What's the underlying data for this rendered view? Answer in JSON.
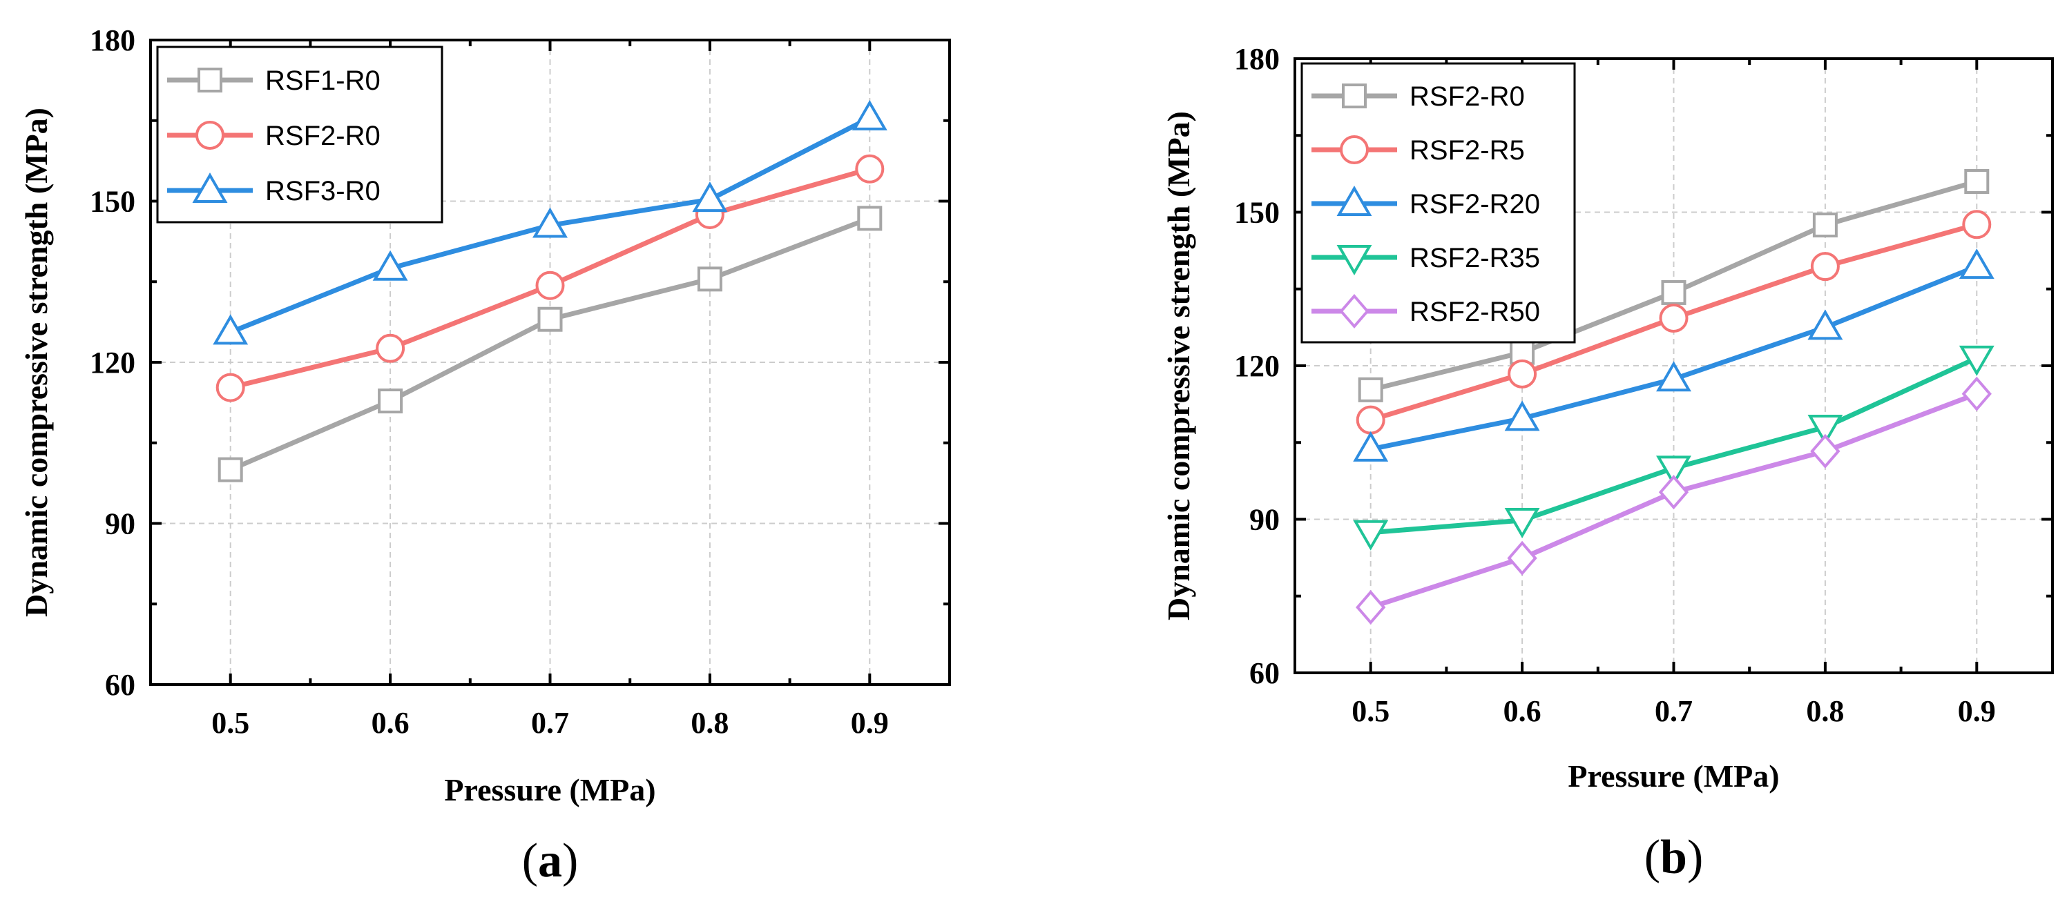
{
  "chart_data": [
    {
      "type": "line",
      "panel_label": {
        "open": "(",
        "letter": "a",
        "close": ")"
      },
      "xlabel": "Pressure (MPa)",
      "ylabel": "Dynamic compressive strength (MPa)",
      "x": [
        0.5,
        0.6,
        0.7,
        0.8,
        0.9
      ],
      "x_tick_labels": [
        "0.5",
        "0.6",
        "0.7",
        "0.8",
        "0.9"
      ],
      "y_ticks": [
        60,
        90,
        120,
        150,
        180
      ],
      "xlim": [
        0.45,
        0.95
      ],
      "ylim": [
        60,
        180
      ],
      "grid": true,
      "legend_position": "top-left",
      "series": [
        {
          "name": "RSF1-R0",
          "color": "#a6a6a6",
          "marker": "square",
          "values": [
            100,
            112.8,
            128,
            135.5,
            146.8
          ]
        },
        {
          "name": "RSF2-R0",
          "color": "#f47575",
          "marker": "circle",
          "values": [
            115.3,
            122.6,
            134.3,
            147.5,
            156
          ]
        },
        {
          "name": "RSF3-R0",
          "color": "#2e8de0",
          "marker": "triangle-up",
          "values": [
            125.6,
            137.5,
            145.5,
            150.3,
            165.5
          ]
        }
      ]
    },
    {
      "type": "line",
      "panel_label": {
        "open": "(",
        "letter": "b",
        "close": ")"
      },
      "xlabel": "Pressure (MPa)",
      "ylabel": "Dynamic compressive strength (MPa)",
      "x": [
        0.5,
        0.6,
        0.7,
        0.8,
        0.9
      ],
      "x_tick_labels": [
        "0.5",
        "0.6",
        "0.7",
        "0.8",
        "0.9"
      ],
      "y_ticks": [
        60,
        90,
        120,
        150,
        180
      ],
      "xlim": [
        0.45,
        0.95
      ],
      "ylim": [
        60,
        180
      ],
      "grid": true,
      "legend_position": "top-left",
      "series": [
        {
          "name": "RSF2-R0",
          "color": "#a6a6a6",
          "marker": "square",
          "values": [
            115.3,
            122.6,
            134.3,
            147.5,
            156
          ]
        },
        {
          "name": "RSF2-R5",
          "color": "#f47575",
          "marker": "circle",
          "values": [
            109.4,
            118.4,
            129.3,
            139.4,
            147.6
          ]
        },
        {
          "name": "RSF2-R20",
          "color": "#2e8de0",
          "marker": "triangle-up",
          "values": [
            103.7,
            109.7,
            117.4,
            127.5,
            139.4
          ]
        },
        {
          "name": "RSF2-R35",
          "color": "#1fc497",
          "marker": "triangle-down",
          "values": [
            87.4,
            89.8,
            100,
            108,
            121.5
          ]
        },
        {
          "name": "RSF2-R50",
          "color": "#cc88e8",
          "marker": "diamond",
          "values": [
            72.8,
            82.4,
            95.3,
            103.3,
            114.5
          ]
        }
      ]
    }
  ]
}
